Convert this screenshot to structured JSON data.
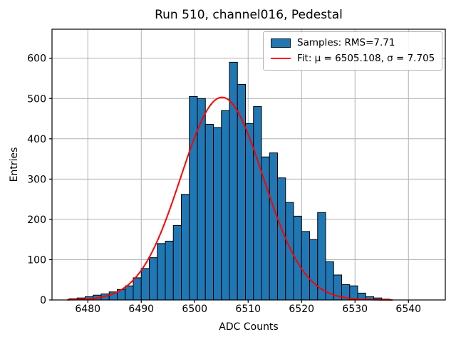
{
  "title": "Run 510, channel016, Pedestal",
  "xlabel": "ADC Counts",
  "ylabel": "Entries",
  "legend": {
    "samples_label": "Samples: RMS=7.71",
    "fit_label": "Fit: μ = 6505.108, σ = 7.705"
  },
  "colors": {
    "bar_fill": "#1f77b4",
    "bar_edge": "#000000",
    "fit_line": "#ff0000",
    "grid": "#b0b0b0",
    "spine": "#000000",
    "background": "#ffffff"
  },
  "chart_data": {
    "type": "bar",
    "title": "Run 510, channel016, Pedestal",
    "xlabel": "ADC Counts",
    "ylabel": "Entries",
    "grid": true,
    "legend_position": "upper right",
    "xlim": [
      6473.3,
      6546.9
    ],
    "ylim": [
      0,
      672
    ],
    "xticks": [
      6480,
      6490,
      6500,
      6510,
      6520,
      6530,
      6540
    ],
    "yticks": [
      0,
      100,
      200,
      300,
      400,
      500,
      600
    ],
    "histogram": {
      "bin_start": 6476.5,
      "bin_width": 1.5,
      "values": [
        3,
        5,
        8,
        12,
        15,
        20,
        26,
        35,
        55,
        78,
        105,
        140,
        146,
        185,
        262,
        505,
        500,
        436,
        428,
        470,
        590,
        535,
        438,
        480,
        355,
        365,
        303,
        242,
        208,
        170,
        150,
        217,
        95,
        62,
        38,
        35,
        17,
        8,
        5,
        2
      ],
      "rms": 7.71
    },
    "fit": {
      "type": "gaussian",
      "mu": 6505.108,
      "sigma": 7.705,
      "amplitude": 503,
      "x_start": 6476.2,
      "x_end": 6537.0
    }
  }
}
